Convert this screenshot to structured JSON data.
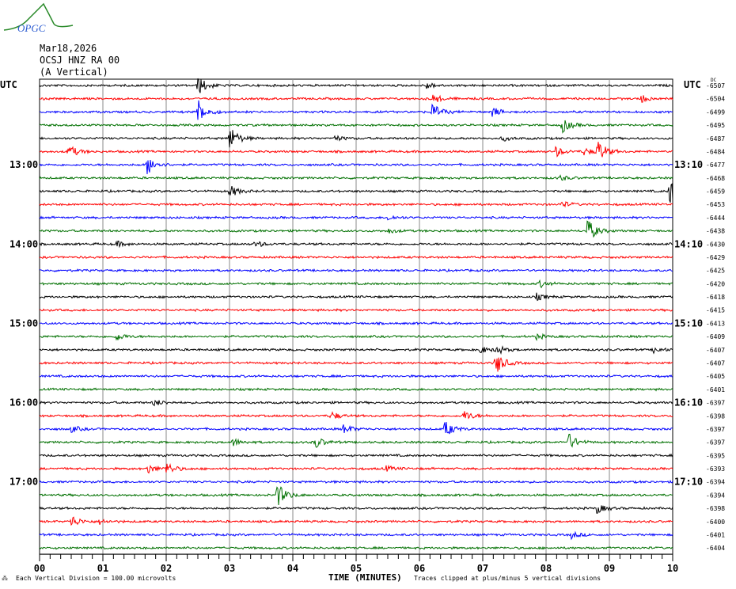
{
  "logo_text": "OPGC",
  "header": {
    "date": "Mar18,2026",
    "station": "OCSJ HNZ RA 00",
    "component": "(A Vertical)"
  },
  "left_tz": "UTC",
  "right_tz": "UTC",
  "dc_label": "DC",
  "footer": {
    "scale_note": "Each Vertical Division =  100.00 microvolts",
    "xlabel": "TIME (MINUTES)",
    "clip_note": "Traces clipped at plus/minus 5 vertical divisions"
  },
  "chart_data": {
    "type": "line",
    "title": "",
    "xlabel": "TIME (MINUTES)",
    "xlim": [
      0,
      10
    ],
    "x_ticks": [
      "00",
      "01",
      "02",
      "03",
      "04",
      "05",
      "06",
      "07",
      "08",
      "09",
      "10"
    ],
    "trace_colors": [
      "#000000",
      "#ff0000",
      "#0000ff",
      "#007000"
    ],
    "grid": true,
    "left_time_labels": [
      {
        "row": 6,
        "text": "13:00"
      },
      {
        "row": 12,
        "text": "14:00"
      },
      {
        "row": 18,
        "text": "15:00"
      },
      {
        "row": 24,
        "text": "16:00"
      },
      {
        "row": 30,
        "text": "17:00"
      }
    ],
    "right_time_labels": [
      {
        "row": 6,
        "text": "13:10"
      },
      {
        "row": 12,
        "text": "14:10"
      },
      {
        "row": 18,
        "text": "15:10"
      },
      {
        "row": 24,
        "text": "16:10"
      },
      {
        "row": 30,
        "text": "17:10"
      }
    ],
    "dc_offsets": [
      -6507,
      -6504,
      -6499,
      -6495,
      -6487,
      -6484,
      -6477,
      -6468,
      -6459,
      -6453,
      -6444,
      -6438,
      -6430,
      -6429,
      -6425,
      -6420,
      -6418,
      -6415,
      -6413,
      -6409,
      -6407,
      -6407,
      -6405,
      -6401,
      -6397,
      -6398,
      -6397,
      -6397,
      -6395,
      -6393,
      -6394,
      -6394,
      -6398,
      -6400,
      -6401,
      -6404
    ],
    "events": [
      {
        "row": 0,
        "minute": 2.5,
        "amp": 4
      },
      {
        "row": 0,
        "minute": 6.1,
        "amp": 1.5
      },
      {
        "row": 1,
        "minute": 6.2,
        "amp": 2
      },
      {
        "row": 1,
        "minute": 9.5,
        "amp": 1.5
      },
      {
        "row": 2,
        "minute": 2.5,
        "amp": 5
      },
      {
        "row": 2,
        "minute": 6.2,
        "amp": 3.5
      },
      {
        "row": 2,
        "minute": 7.15,
        "amp": 2
      },
      {
        "row": 3,
        "minute": 8.25,
        "amp": 3
      },
      {
        "row": 4,
        "minute": 3.0,
        "amp": 5
      },
      {
        "row": 4,
        "minute": 4.65,
        "amp": 1.2
      },
      {
        "row": 4,
        "minute": 7.3,
        "amp": 1
      },
      {
        "row": 5,
        "minute": 0.45,
        "amp": 3
      },
      {
        "row": 5,
        "minute": 8.15,
        "amp": 2
      },
      {
        "row": 5,
        "minute": 8.6,
        "amp": 1.5
      },
      {
        "row": 5,
        "minute": 8.8,
        "amp": 5
      },
      {
        "row": 6,
        "minute": 1.7,
        "amp": 4
      },
      {
        "row": 7,
        "minute": 8.2,
        "amp": 1.2
      },
      {
        "row": 8,
        "minute": 3.0,
        "amp": 2.5
      },
      {
        "row": 8,
        "minute": 9.95,
        "amp": 5
      },
      {
        "row": 9,
        "minute": 8.25,
        "amp": 1.2
      },
      {
        "row": 10,
        "minute": 5.5,
        "amp": 1
      },
      {
        "row": 11,
        "minute": 5.5,
        "amp": 1
      },
      {
        "row": 11,
        "minute": 8.65,
        "amp": 5
      },
      {
        "row": 12,
        "minute": 1.2,
        "amp": 1.2
      },
      {
        "row": 12,
        "minute": 3.4,
        "amp": 1.3
      },
      {
        "row": 15,
        "minute": 7.9,
        "amp": 1.3
      },
      {
        "row": 16,
        "minute": 7.85,
        "amp": 1.3
      },
      {
        "row": 19,
        "minute": 1.2,
        "amp": 1.8
      },
      {
        "row": 19,
        "minute": 7.85,
        "amp": 1
      },
      {
        "row": 20,
        "minute": 6.95,
        "amp": 1.5
      },
      {
        "row": 20,
        "minute": 7.2,
        "amp": 2
      },
      {
        "row": 20,
        "minute": 9.7,
        "amp": 1.3
      },
      {
        "row": 21,
        "minute": 7.2,
        "amp": 5
      },
      {
        "row": 24,
        "minute": 1.8,
        "amp": 1.5
      },
      {
        "row": 25,
        "minute": 4.6,
        "amp": 1.8
      },
      {
        "row": 25,
        "minute": 6.7,
        "amp": 2.2
      },
      {
        "row": 26,
        "minute": 0.5,
        "amp": 1.3
      },
      {
        "row": 26,
        "minute": 4.8,
        "amp": 2
      },
      {
        "row": 26,
        "minute": 6.4,
        "amp": 3.5
      },
      {
        "row": 27,
        "minute": 3.05,
        "amp": 1.5
      },
      {
        "row": 27,
        "minute": 4.35,
        "amp": 2.5
      },
      {
        "row": 27,
        "minute": 8.35,
        "amp": 3.5
      },
      {
        "row": 29,
        "minute": 1.7,
        "amp": 2
      },
      {
        "row": 29,
        "minute": 2.0,
        "amp": 2.5
      },
      {
        "row": 29,
        "minute": 5.45,
        "amp": 1.2
      },
      {
        "row": 31,
        "minute": 3.75,
        "amp": 5
      },
      {
        "row": 32,
        "minute": 8.8,
        "amp": 2
      },
      {
        "row": 33,
        "minute": 0.5,
        "amp": 2.5
      },
      {
        "row": 33,
        "minute": 0.95,
        "amp": 1
      },
      {
        "row": 34,
        "minute": 8.4,
        "amp": 1.3
      }
    ]
  }
}
